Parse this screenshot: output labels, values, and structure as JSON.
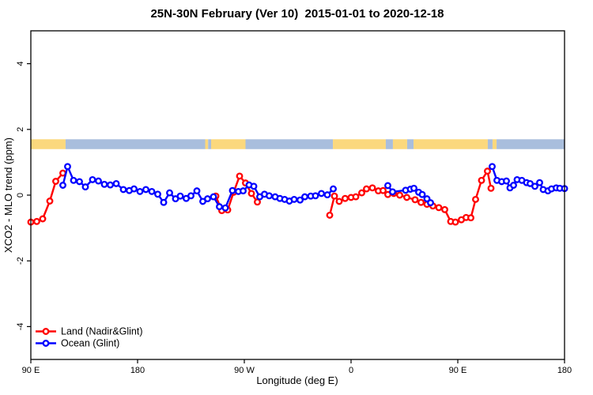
{
  "title": "25N-30N February (Ver 10)  2015-01-01 to 2020-12-18",
  "chart_data": {
    "type": "line",
    "title": "25N-30N February (Ver 10)  2015-01-01 to 2020-12-18",
    "xlabel": "Longitude (deg E)",
    "ylabel": "XCO2 - MLO trend (ppm)",
    "grid": false,
    "legend_position": "bottom-left",
    "ylim": [
      -5,
      5
    ],
    "y_ticks": [
      {
        "value": -4,
        "label": "-4"
      },
      {
        "value": -2,
        "label": "-2"
      },
      {
        "value": 0,
        "label": "0"
      },
      {
        "value": 2,
        "label": "2"
      },
      {
        "value": 4,
        "label": "4"
      }
    ],
    "x_axis_span_deg": [
      0,
      450
    ],
    "x_ticks": [
      {
        "pos_deg": 0,
        "label": "90 E"
      },
      {
        "pos_deg": 90,
        "label": "180"
      },
      {
        "pos_deg": 180,
        "label": "90 W"
      },
      {
        "pos_deg": 270,
        "label": "0"
      },
      {
        "pos_deg": 360,
        "label": "90 E"
      },
      {
        "pos_deg": 450,
        "label": "180"
      }
    ],
    "land_ocean_band": {
      "y_range_ppm": [
        1.4,
        1.7
      ],
      "land_color": "#fbd87d",
      "ocean_color": "#a9bedd",
      "segments": [
        {
          "from": 0,
          "to": 29.3,
          "type": "land"
        },
        {
          "from": 29.3,
          "to": 147,
          "type": "ocean"
        },
        {
          "from": 147,
          "to": 149.5,
          "type": "land"
        },
        {
          "from": 149.5,
          "to": 152,
          "type": "ocean"
        },
        {
          "from": 152,
          "to": 181,
          "type": "land"
        },
        {
          "from": 181,
          "to": 254.7,
          "type": "ocean"
        },
        {
          "from": 254.7,
          "to": 299.3,
          "type": "land"
        },
        {
          "from": 299.3,
          "to": 305.3,
          "type": "ocean"
        },
        {
          "from": 305.3,
          "to": 317.3,
          "type": "land"
        },
        {
          "from": 317.3,
          "to": 322.7,
          "type": "ocean"
        },
        {
          "from": 322.7,
          "to": 385.3,
          "type": "land"
        },
        {
          "from": 385.3,
          "to": 389.3,
          "type": "ocean"
        },
        {
          "from": 389.3,
          "to": 392.7,
          "type": "land"
        },
        {
          "from": 392.7,
          "to": 450,
          "type": "ocean"
        }
      ]
    },
    "series": [
      {
        "name": "Land (Nadir&Glint)",
        "color": "#ff0000",
        "marker": "open-circle",
        "segments": [
          [
            [
              0,
              -0.82
            ],
            [
              5,
              -0.8
            ],
            [
              10,
              -0.72
            ],
            [
              16,
              -0.18
            ],
            [
              21,
              0.42
            ],
            [
              27,
              0.67
            ]
          ],
          [
            [
              156,
              -0.03
            ],
            [
              161,
              -0.47
            ],
            [
              166,
              -0.45
            ],
            [
              171,
              0.09
            ],
            [
              176,
              0.58
            ],
            [
              181,
              0.37
            ],
            [
              186,
              0.05
            ],
            [
              191,
              -0.21
            ]
          ],
          [
            [
              252,
              -0.61
            ],
            [
              256,
              -0.03
            ],
            [
              260,
              -0.19
            ],
            [
              265,
              -0.1
            ],
            [
              270,
              -0.07
            ],
            [
              274,
              -0.05
            ],
            [
              279,
              0.07
            ],
            [
              283,
              0.19
            ],
            [
              288,
              0.22
            ],
            [
              293,
              0.13
            ],
            [
              297,
              0.14
            ],
            [
              301,
              0.02
            ],
            [
              306,
              0.05
            ],
            [
              311,
              0.0
            ],
            [
              317,
              -0.07
            ],
            [
              324,
              -0.14
            ],
            [
              329,
              -0.22
            ],
            [
              334,
              -0.28
            ],
            [
              339,
              -0.33
            ],
            [
              344,
              -0.38
            ],
            [
              349,
              -0.44
            ],
            [
              354,
              -0.8
            ],
            [
              358,
              -0.82
            ],
            [
              363,
              -0.75
            ],
            [
              367,
              -0.68
            ],
            [
              371,
              -0.69
            ],
            [
              375,
              -0.13
            ],
            [
              380,
              0.45
            ],
            [
              385,
              0.73
            ],
            [
              388,
              0.21
            ]
          ]
        ]
      },
      {
        "name": "Ocean (Glint)",
        "color": "#0000ff",
        "marker": "open-circle",
        "segments": [
          [
            [
              27,
              0.3
            ],
            [
              31,
              0.87
            ],
            [
              36,
              0.45
            ],
            [
              41,
              0.41
            ],
            [
              46,
              0.25
            ],
            [
              52,
              0.47
            ],
            [
              57,
              0.43
            ],
            [
              62,
              0.33
            ],
            [
              67,
              0.31
            ],
            [
              72,
              0.35
            ],
            [
              78,
              0.17
            ],
            [
              83,
              0.14
            ],
            [
              87,
              0.19
            ],
            [
              92,
              0.11
            ],
            [
              97,
              0.17
            ],
            [
              102,
              0.11
            ],
            [
              107,
              0.03
            ],
            [
              112,
              -0.22
            ],
            [
              117,
              0.07
            ],
            [
              122,
              -0.11
            ],
            [
              126,
              -0.03
            ],
            [
              131,
              -0.1
            ],
            [
              135,
              -0.02
            ],
            [
              140,
              0.13
            ],
            [
              145,
              -0.19
            ],
            [
              149,
              -0.11
            ],
            [
              154,
              -0.05
            ],
            [
              159,
              -0.35
            ],
            [
              164,
              -0.39
            ],
            [
              170,
              0.14
            ],
            [
              175,
              0.11
            ],
            [
              179,
              0.13
            ],
            [
              184,
              0.31
            ],
            [
              188,
              0.27
            ],
            [
              193,
              -0.05
            ],
            [
              197,
              0.03
            ],
            [
              201,
              -0.02
            ],
            [
              206,
              -0.05
            ],
            [
              210,
              -0.1
            ],
            [
              214,
              -0.13
            ],
            [
              218,
              -0.18
            ],
            [
              222,
              -0.13
            ],
            [
              227,
              -0.15
            ],
            [
              231,
              -0.05
            ],
            [
              236,
              -0.03
            ],
            [
              240,
              -0.02
            ],
            [
              245,
              0.05
            ],
            [
              250,
              0.01
            ],
            [
              255,
              0.19
            ]
          ],
          [
            [
              301,
              0.29
            ],
            [
              305,
              0.1
            ],
            [
              316,
              0.15
            ],
            [
              320,
              0.18
            ],
            [
              323,
              0.21
            ],
            [
              327,
              0.09
            ],
            [
              330,
              0.02
            ],
            [
              334,
              -0.11
            ],
            [
              337,
              -0.23
            ]
          ],
          [
            [
              389,
              0.87
            ],
            [
              393,
              0.45
            ],
            [
              397,
              0.41
            ],
            [
              401,
              0.43
            ],
            [
              404,
              0.22
            ],
            [
              407,
              0.3
            ],
            [
              410,
              0.47
            ],
            [
              414,
              0.45
            ],
            [
              418,
              0.38
            ],
            [
              421,
              0.35
            ],
            [
              425,
              0.27
            ],
            [
              429,
              0.38
            ],
            [
              432,
              0.17
            ],
            [
              436,
              0.13
            ],
            [
              439,
              0.19
            ],
            [
              443,
              0.22
            ],
            [
              446,
              0.21
            ],
            [
              450,
              0.2
            ]
          ]
        ]
      }
    ]
  }
}
